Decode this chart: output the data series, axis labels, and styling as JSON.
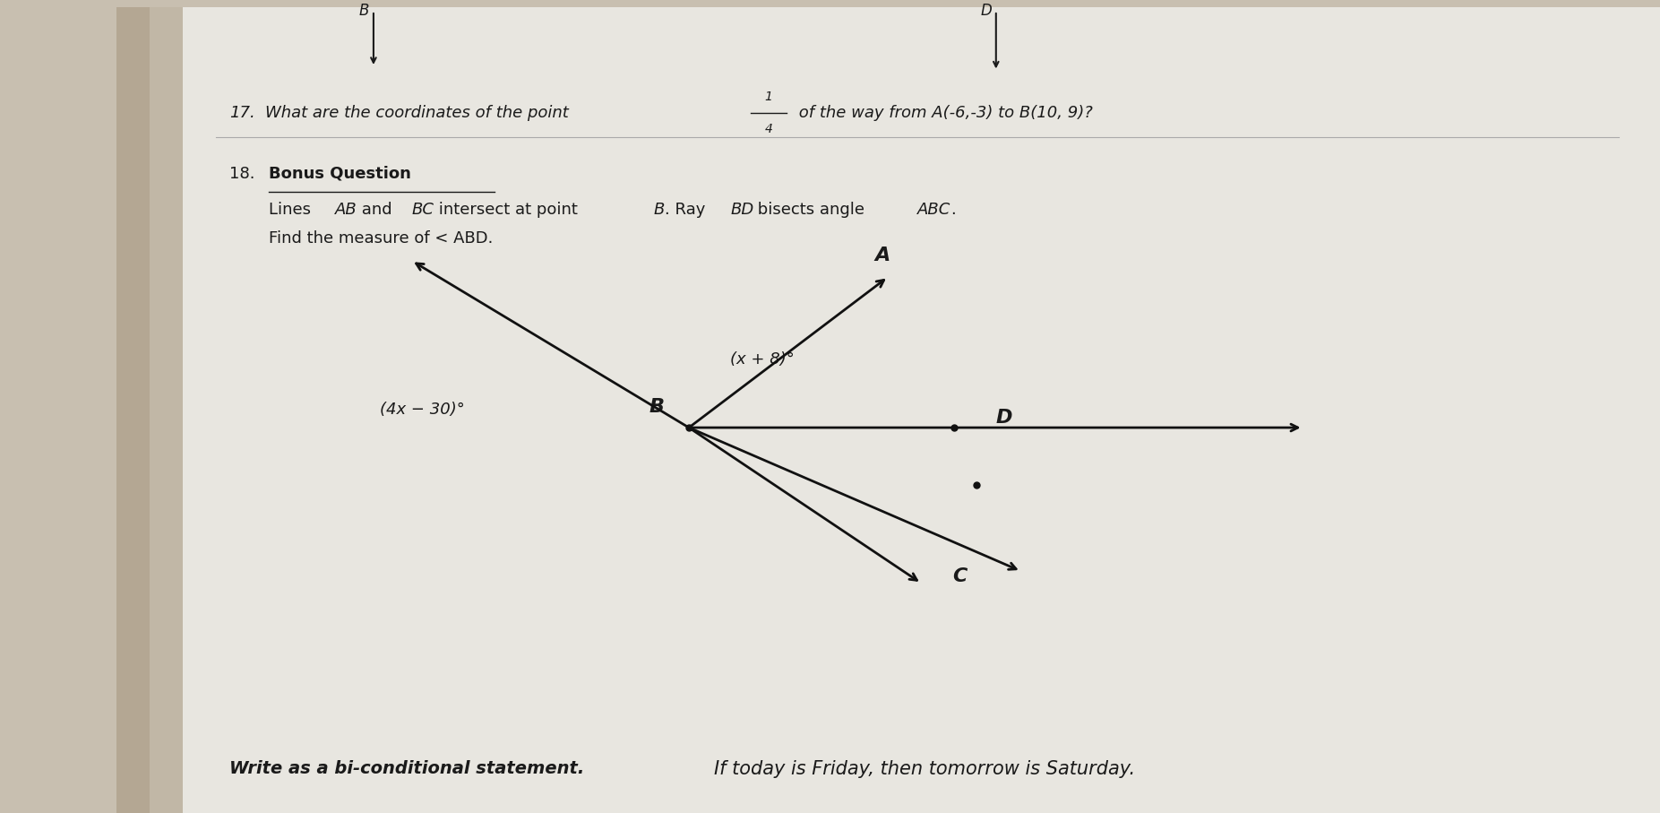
{
  "bg_color": "#c8bfb0",
  "paper_color": "#e8e6e0",
  "text_color": "#1a1a1a",
  "q17_number": "17.",
  "q17_text_part1": "What are the coordinates of the point ",
  "q17_text_part2": " of the way from A(-6,-3) to B(10, 9)?",
  "q17_fraction_num": "1",
  "q17_fraction_den": "4",
  "q18_number": "18.",
  "q18_bold": "Bonus Question",
  "q18_line1a": "Lines ",
  "q18_line1b": "AB",
  "q18_line1c": " and ",
  "q18_line1d": "BC",
  "q18_line1e": " intersect at point ",
  "q18_line1f": "B",
  "q18_line1g": ". Ray ",
  "q18_line1h": "BD",
  "q18_line1i": " bisects angle ",
  "q18_line1j": "ABC",
  "q18_line1k": ".",
  "q18_line2": "Find the measure of < ABD.",
  "angle_label1": "(x + 8)°",
  "angle_label2": "(4x − 30)°",
  "label_A": "A",
  "label_B": "B",
  "label_C": "C",
  "label_D": "D",
  "label_topB": "B",
  "label_topD": "D",
  "bottom_italic": "Write as a bi-conditional statement.",
  "bottom_text": "If today is Friday, then tomorrow is Saturday.",
  "line_color": "#111111"
}
